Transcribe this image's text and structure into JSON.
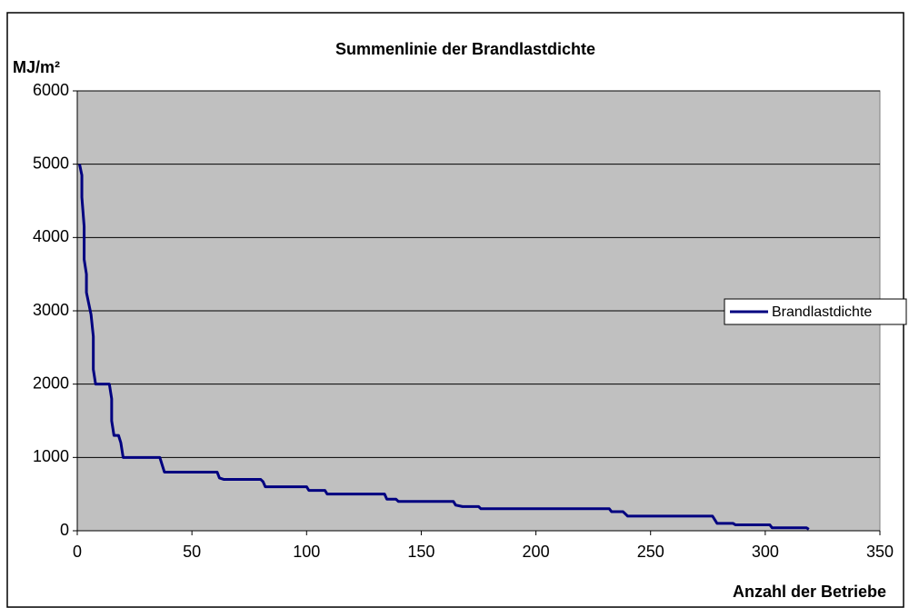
{
  "chart_data": {
    "type": "line",
    "title": "Summenlinie der Brandlastdichte",
    "y_label": "MJ/m²",
    "x_label": "Anzahl der Betriebe",
    "x": [
      1,
      2,
      2,
      3,
      3,
      4,
      4,
      5,
      6,
      7,
      7,
      8,
      14,
      15,
      15,
      16,
      18,
      19,
      20,
      36,
      38,
      61,
      62,
      64,
      80,
      81,
      82,
      100,
      101,
      108,
      109,
      134,
      135,
      139,
      140,
      164,
      165,
      168,
      175,
      176,
      232,
      233,
      238,
      240,
      277,
      279,
      286,
      287,
      302,
      303,
      318,
      319
    ],
    "series": [
      {
        "name": "Brandlastdichte",
        "color": "#000080",
        "values": [
          5000,
          4850,
          4550,
          4150,
          3700,
          3500,
          3250,
          3100,
          2950,
          2650,
          2200,
          2000,
          2000,
          1800,
          1500,
          1300,
          1300,
          1200,
          1000,
          1000,
          800,
          800,
          720,
          700,
          700,
          670,
          600,
          600,
          550,
          550,
          500,
          500,
          430,
          430,
          400,
          400,
          350,
          330,
          330,
          300,
          300,
          260,
          260,
          200,
          200,
          100,
          100,
          80,
          80,
          40,
          40,
          20
        ]
      }
    ],
    "xlim": [
      0,
      350
    ],
    "xticks": [
      0,
      50,
      100,
      150,
      200,
      250,
      300,
      350
    ],
    "ylim": [
      0,
      6000
    ],
    "yticks": [
      0,
      1000,
      2000,
      3000,
      4000,
      5000,
      6000
    ],
    "grid": true,
    "plot_background": "#c0c0c0",
    "legend": "right"
  }
}
